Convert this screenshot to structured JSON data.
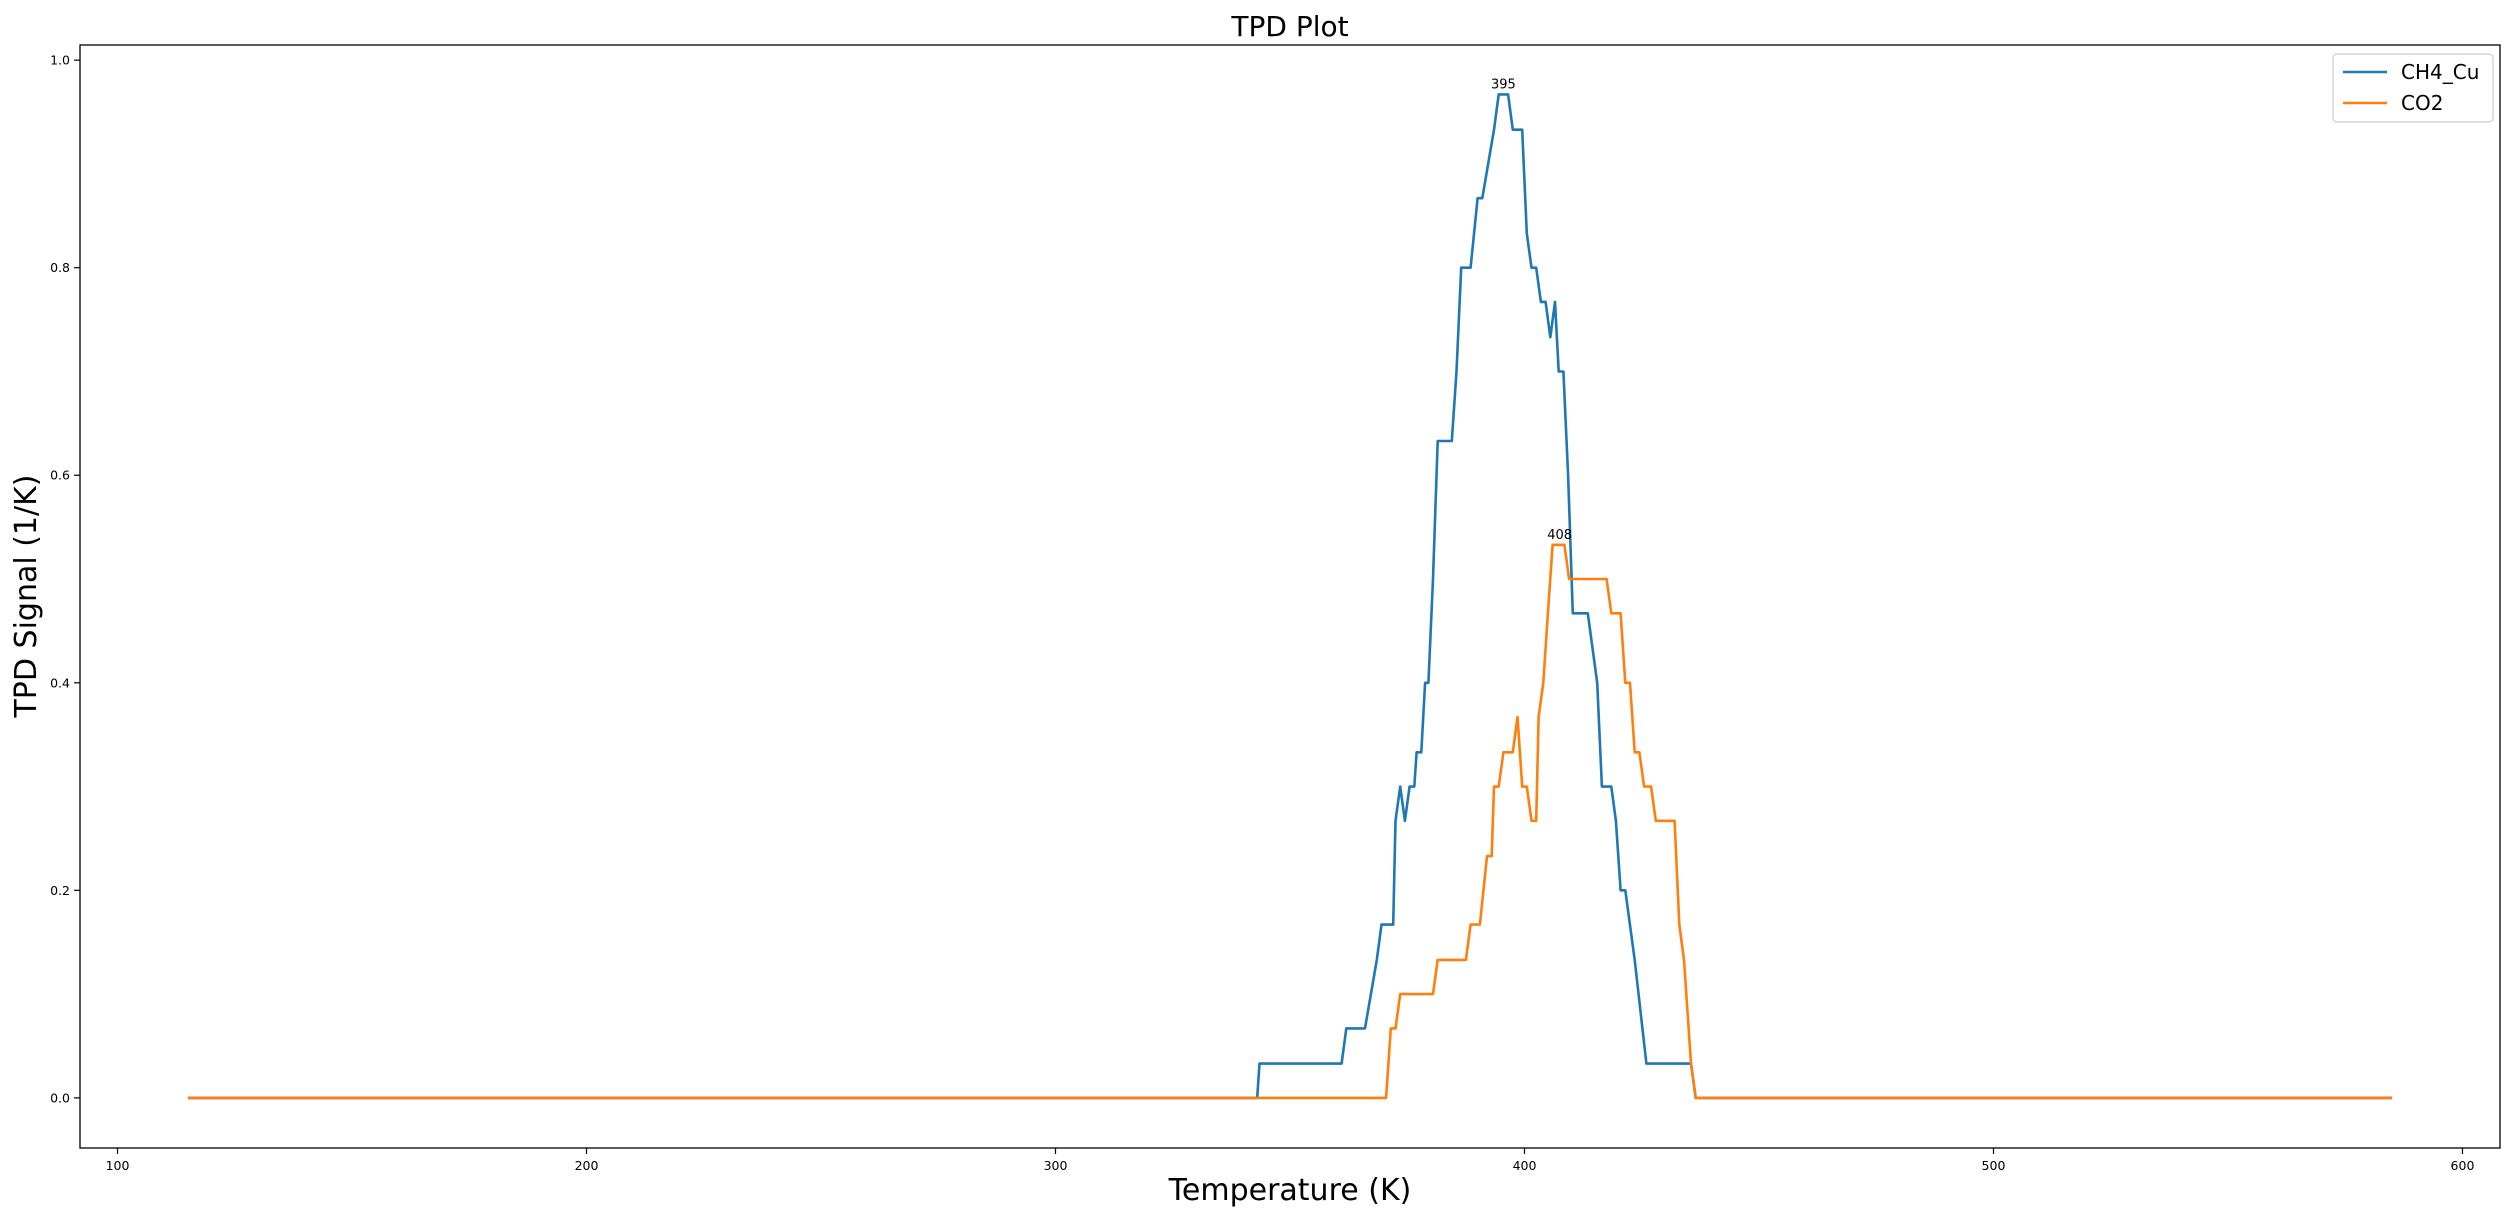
{
  "chart_data": {
    "type": "line",
    "title": "TPD Plot",
    "xlabel": "Temperature (K)",
    "ylabel": "TPD Signal (1/K)",
    "xlim": [
      92,
      608
    ],
    "ylim": [
      -0.0483,
      1.0146
    ],
    "x_ticks": [
      100,
      200,
      300,
      400,
      500,
      600
    ],
    "x_tick_labels": [
      "100",
      "200",
      "300",
      "400",
      "500",
      "600"
    ],
    "y_ticks": [
      0.0,
      0.2,
      0.4,
      0.6,
      0.8,
      1.0
    ],
    "y_tick_labels": [
      "0.0",
      "0.2",
      "0.4",
      "0.6",
      "0.8",
      "1.0"
    ],
    "grid": false,
    "legend_position": "top-right",
    "series": [
      {
        "name": "CH4_Cu",
        "color": "#1f77b4",
        "points": [
          [
            115,
            0
          ],
          [
            343,
            0
          ],
          [
            343.5,
            0.033
          ],
          [
            345,
            0.033
          ],
          [
            361,
            0.033
          ],
          [
            362,
            0.067
          ],
          [
            366,
            0.067
          ],
          [
            368.5,
            0.133
          ],
          [
            369.5,
            0.167
          ],
          [
            372,
            0.167
          ],
          [
            372.5,
            0.267
          ],
          [
            373.5,
            0.3
          ],
          [
            374.5,
            0.267
          ],
          [
            375.5,
            0.3
          ],
          [
            376.5,
            0.3
          ],
          [
            377,
            0.333
          ],
          [
            378,
            0.333
          ],
          [
            378.8,
            0.4
          ],
          [
            379.5,
            0.4
          ],
          [
            380.5,
            0.5
          ],
          [
            381.5,
            0.633
          ],
          [
            384.5,
            0.633
          ],
          [
            385.5,
            0.7
          ],
          [
            386.5,
            0.8
          ],
          [
            388.5,
            0.8
          ],
          [
            390,
            0.867
          ],
          [
            391,
            0.867
          ],
          [
            393.5,
            0.933
          ],
          [
            394.5,
            0.967
          ],
          [
            396.5,
            0.967
          ],
          [
            397.5,
            0.933
          ],
          [
            399.5,
            0.933
          ],
          [
            400.5,
            0.833
          ],
          [
            401.5,
            0.8
          ],
          [
            402.5,
            0.8
          ],
          [
            403.5,
            0.767
          ],
          [
            404.5,
            0.767
          ],
          [
            405.5,
            0.733
          ],
          [
            406.5,
            0.767
          ],
          [
            407.3,
            0.7
          ],
          [
            408.3,
            0.7
          ],
          [
            409.3,
            0.6
          ],
          [
            410.3,
            0.467
          ],
          [
            413.5,
            0.467
          ],
          [
            415.5,
            0.4
          ],
          [
            416.5,
            0.3
          ],
          [
            418.5,
            0.3
          ],
          [
            419.5,
            0.267
          ],
          [
            420.5,
            0.2
          ],
          [
            421.5,
            0.2
          ],
          [
            423.5,
            0.133
          ],
          [
            426,
            0.033
          ],
          [
            435.5,
            0.033
          ],
          [
            436.5,
            0
          ],
          [
            585,
            0
          ]
        ],
        "peak_label": "395",
        "peak": [
          395.5,
          0.967
        ]
      },
      {
        "name": "CO2",
        "color": "#ff7f0e",
        "points": [
          [
            115,
            0
          ],
          [
            370.5,
            0
          ],
          [
            371.5,
            0.067
          ],
          [
            372.5,
            0.067
          ],
          [
            373.5,
            0.1
          ],
          [
            380.5,
            0.1
          ],
          [
            381.5,
            0.133
          ],
          [
            387.5,
            0.133
          ],
          [
            388.5,
            0.167
          ],
          [
            390.5,
            0.167
          ],
          [
            392,
            0.233
          ],
          [
            393,
            0.233
          ],
          [
            393.5,
            0.3
          ],
          [
            394.5,
            0.3
          ],
          [
            395.5,
            0.333
          ],
          [
            397.5,
            0.333
          ],
          [
            398.5,
            0.367
          ],
          [
            399.5,
            0.3
          ],
          [
            400.5,
            0.3
          ],
          [
            401.5,
            0.267
          ],
          [
            402.5,
            0.267
          ],
          [
            403,
            0.367
          ],
          [
            404,
            0.4
          ],
          [
            405,
            0.467
          ],
          [
            406,
            0.533
          ],
          [
            408.5,
            0.533
          ],
          [
            409.5,
            0.5
          ],
          [
            417.5,
            0.5
          ],
          [
            418.5,
            0.467
          ],
          [
            420.5,
            0.467
          ],
          [
            421.5,
            0.4
          ],
          [
            422.5,
            0.4
          ],
          [
            423.5,
            0.333
          ],
          [
            424.5,
            0.333
          ],
          [
            425.5,
            0.3
          ],
          [
            427,
            0.3
          ],
          [
            428,
            0.267
          ],
          [
            432,
            0.267
          ],
          [
            433,
            0.167
          ],
          [
            434,
            0.133
          ],
          [
            435.5,
            0.033
          ],
          [
            436.5,
            0
          ],
          [
            585,
            0
          ]
        ],
        "peak_label": "408",
        "peak": [
          407.5,
          0.533
        ]
      }
    ]
  }
}
